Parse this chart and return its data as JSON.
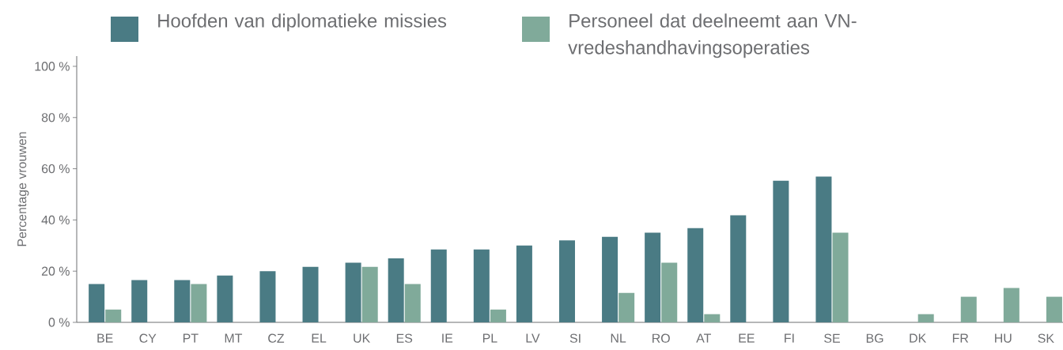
{
  "chart_data": {
    "type": "bar",
    "ylabel": "Percentage vrouwen",
    "categories": [
      "BE",
      "CY",
      "PT",
      "MT",
      "CZ",
      "EL",
      "UK",
      "ES",
      "IE",
      "PL",
      "LV",
      "SI",
      "NL",
      "RO",
      "AT",
      "EE",
      "FI",
      "SE",
      "BG",
      "DK",
      "FR",
      "HU",
      "SK"
    ],
    "series": [
      {
        "name": "Hoofden van diplomatieke missies",
        "color": "#4a7b84",
        "values": [
          15,
          16.5,
          16.5,
          18.3,
          20,
          21.7,
          23.3,
          25,
          28.5,
          28.5,
          30,
          32,
          33.4,
          35,
          36.8,
          41.8,
          55.3,
          56.9,
          null,
          null,
          null,
          null,
          null
        ]
      },
      {
        "name": "Personeel dat deelneemt aan VN-vredeshandhavingsoperaties",
        "color": "#80aa9a",
        "values": [
          5,
          null,
          15,
          null,
          null,
          null,
          21.7,
          15,
          null,
          5,
          null,
          null,
          11.5,
          23.3,
          3.2,
          null,
          null,
          35,
          null,
          3.2,
          10,
          13.4,
          10
        ]
      }
    ],
    "ylim": [
      0,
      104
    ],
    "yticks": [
      {
        "value": 0,
        "label": "0 %"
      },
      {
        "value": 20,
        "label": "20 %"
      },
      {
        "value": 40,
        "label": "40 %"
      },
      {
        "value": 60,
        "label": "60 %"
      },
      {
        "value": 80,
        "label": "80 %"
      },
      {
        "value": 100,
        "label": "100 %"
      }
    ],
    "legend": "top",
    "grid": false
  }
}
